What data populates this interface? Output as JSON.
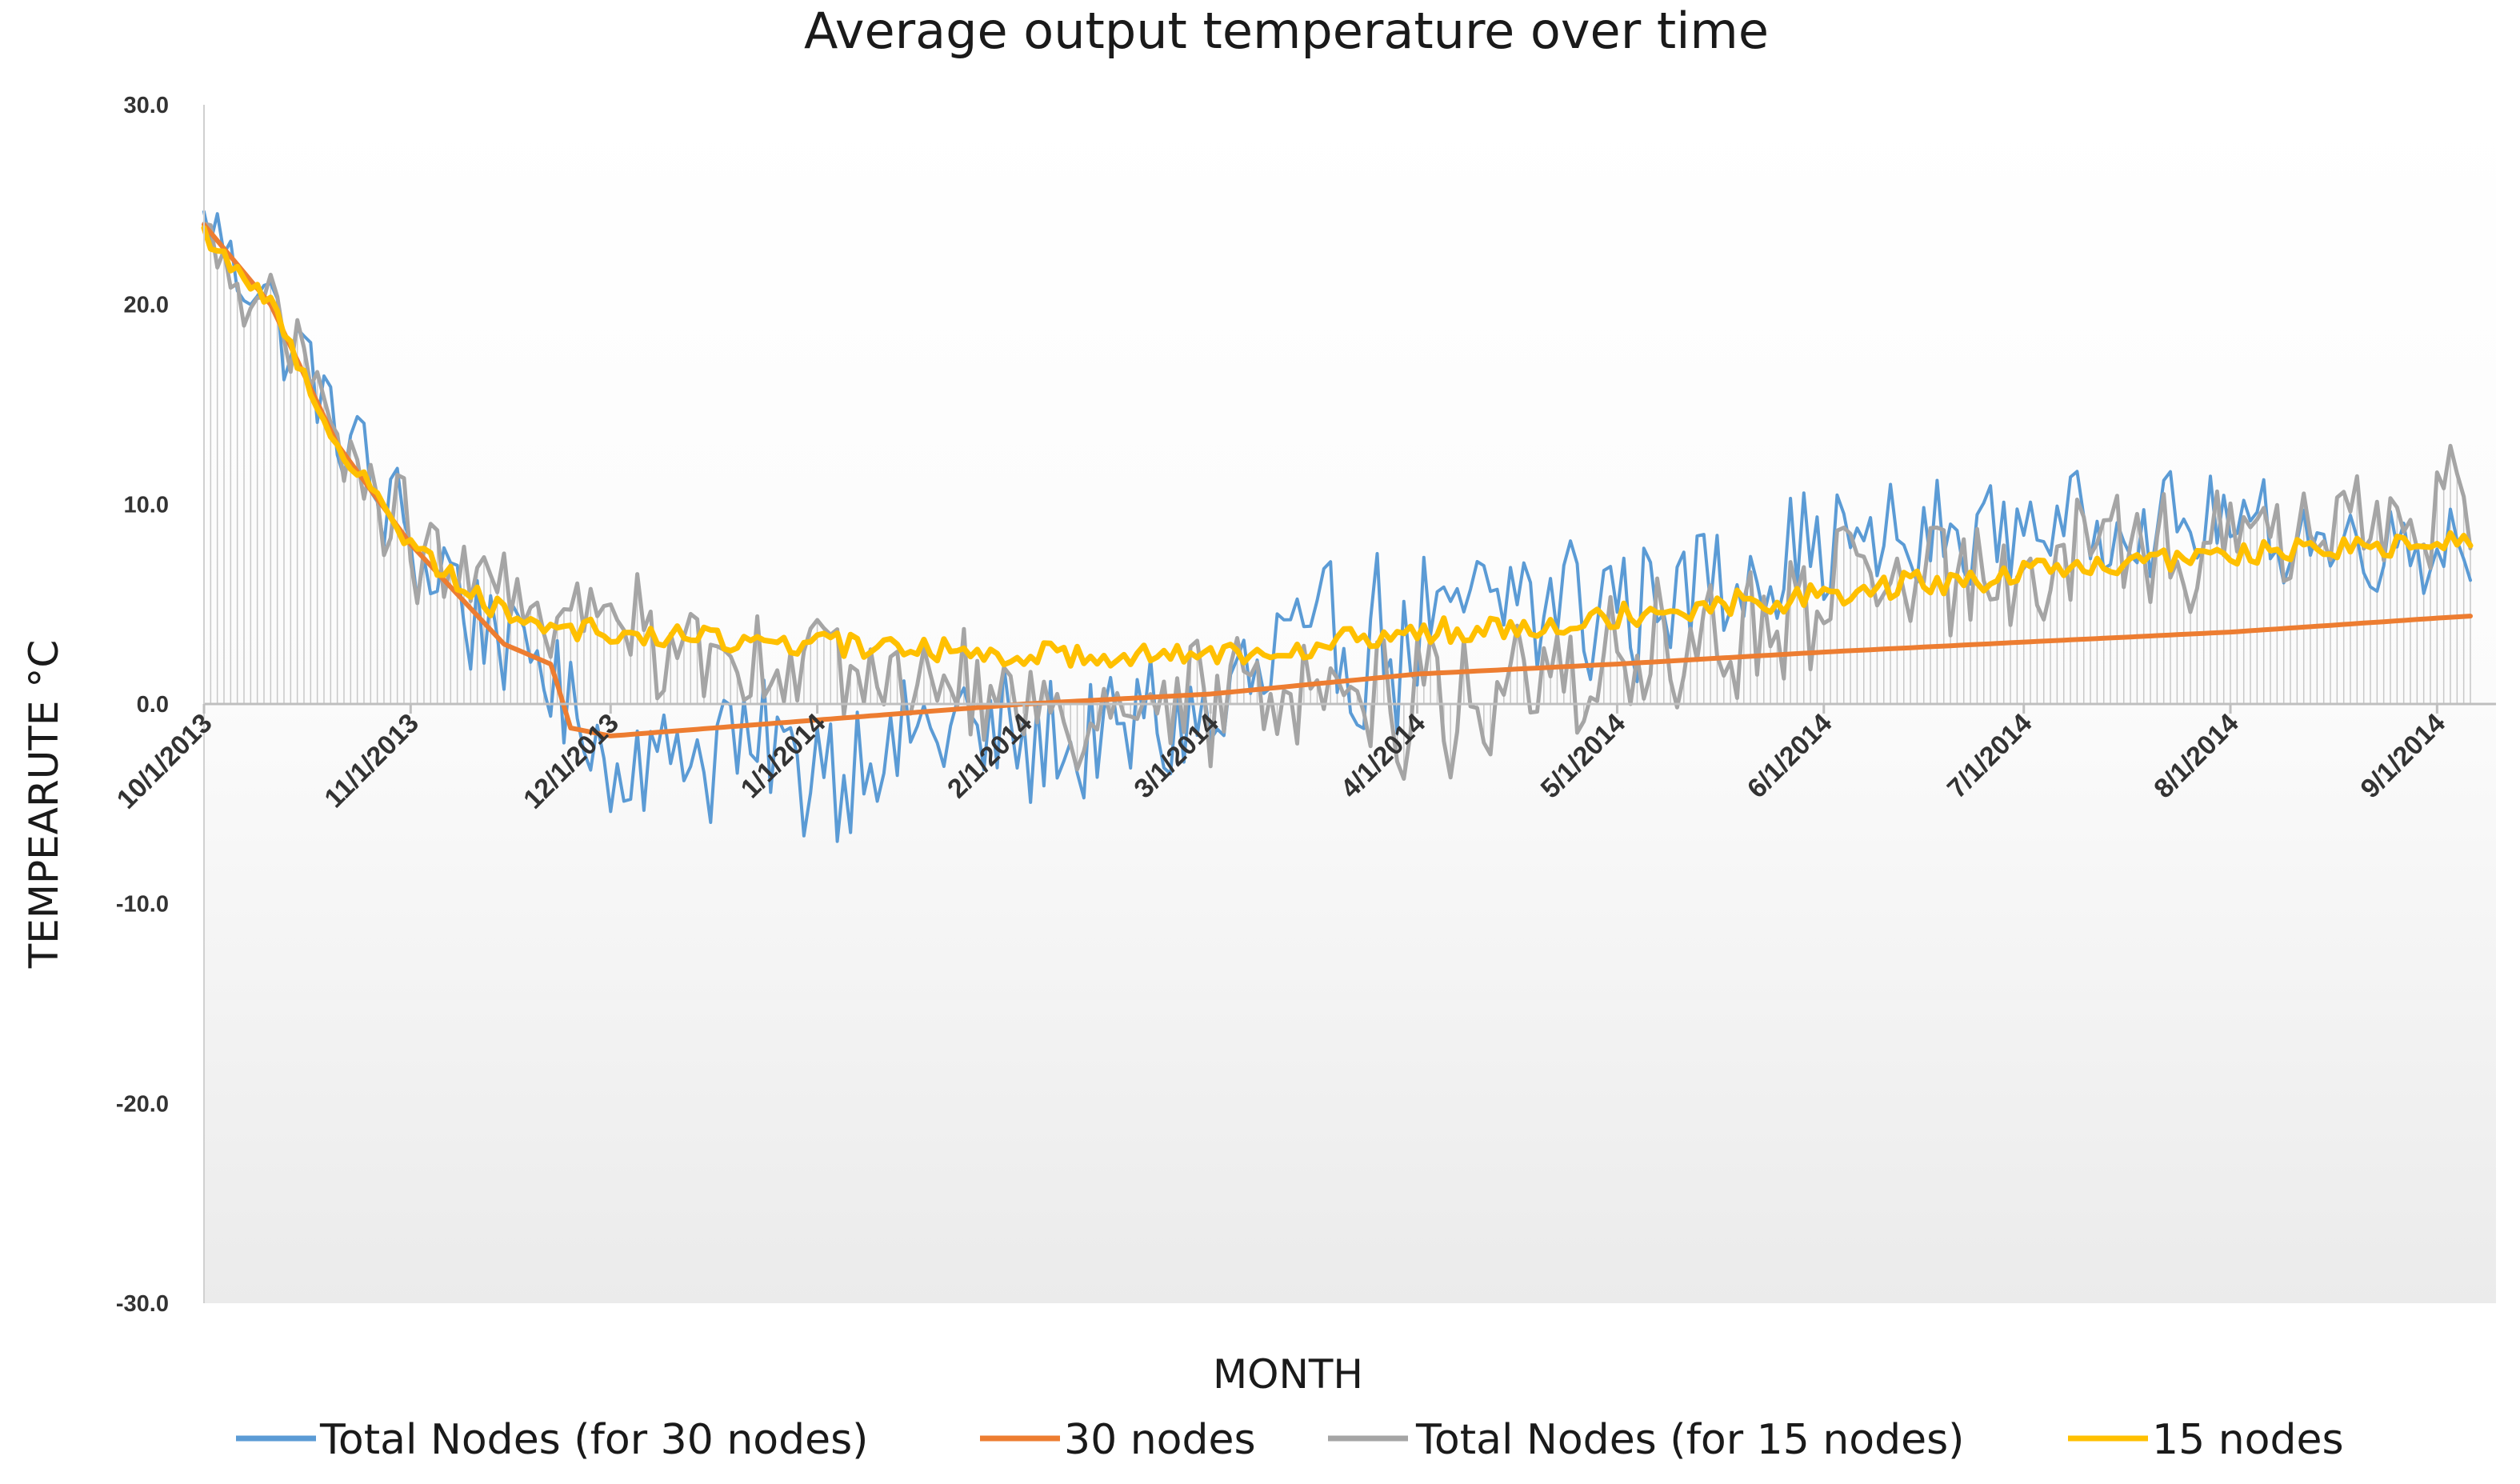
{
  "chart_data": {
    "type": "line",
    "title": "Average output temperature over time",
    "xlabel": "MONTH",
    "ylabel": "TEMPEARUTE °C",
    "ylim": [
      -30,
      30
    ],
    "y_ticks": [
      "30.0",
      "20.0",
      "10.0",
      "0.0",
      "-10.0",
      "-20.0",
      "-30.0"
    ],
    "y_tick_values": [
      30,
      20,
      10,
      0,
      -10,
      -20,
      -30
    ],
    "x_day_range": [
      0,
      340
    ],
    "x_ticks": [
      "10/1/2013",
      "11/1/2013",
      "12/1/2013",
      "1/1/2014",
      "2/1/2014",
      "3/1/2014",
      "4/1/2014",
      "5/1/2014",
      "6/1/2014",
      "7/1/2014",
      "8/1/2014",
      "9/1/2014"
    ],
    "x_tick_days": [
      0,
      31,
      61,
      92,
      123,
      151,
      182,
      212,
      243,
      273,
      304,
      335
    ],
    "grid": false,
    "legend_position": "bottom",
    "series": [
      {
        "name": "Total Nodes (for 30 nodes)",
        "color": "#5b9bd5",
        "style": "noisy",
        "days": [
          0,
          10,
          20,
          31,
          40,
          45,
          50,
          55,
          61,
          75,
          92,
          105,
          110,
          123,
          135,
          140,
          151,
          160,
          170,
          182,
          195,
          212,
          225,
          243,
          258,
          273,
          290,
          304,
          320,
          335,
          340
        ],
        "values": [
          24,
          20,
          14,
          8,
          5,
          3,
          2,
          0,
          -3,
          -2,
          -3,
          -2,
          -1,
          -2,
          -2,
          -1,
          -1,
          2,
          3,
          3,
          5,
          5,
          6,
          8,
          8,
          9,
          9,
          9,
          8,
          8,
          8
        ],
        "amplitude": [
          1.5,
          2,
          2.5,
          2.5,
          3,
          3,
          3,
          3,
          3,
          3.5,
          3.5,
          3,
          3,
          3,
          3,
          3,
          3,
          3.5,
          3.5,
          4,
          4,
          3.5,
          3,
          2.5,
          2.5,
          2,
          2,
          2,
          2,
          2,
          2
        ]
      },
      {
        "name": "30 nodes",
        "color": "#ed7d31",
        "style": "smooth",
        "days": [
          0,
          10,
          20,
          31,
          45,
          52,
          53,
          55,
          61,
          92,
          123,
          151,
          182,
          212,
          243,
          273,
          304,
          335,
          340
        ],
        "values": [
          24,
          20,
          13,
          8,
          3,
          2,
          1,
          -1.2,
          -1.6,
          -0.8,
          0,
          0.5,
          1.5,
          2,
          2.6,
          3.1,
          3.6,
          4.3,
          4.4
        ],
        "amplitude": [
          0,
          0,
          0,
          0,
          0,
          0,
          0,
          0,
          0,
          0,
          0,
          0,
          0,
          0,
          0,
          0,
          0,
          0,
          0
        ]
      },
      {
        "name": "Total Nodes (for 15 nodes)",
        "color": "#a5a5a5",
        "style": "noisy",
        "days": [
          0,
          10,
          20,
          31,
          45,
          61,
          92,
          123,
          151,
          165,
          182,
          200,
          212,
          230,
          243,
          273,
          304,
          320,
          335,
          340
        ],
        "values": [
          23,
          20,
          13,
          8,
          5,
          4,
          2,
          0,
          0,
          1,
          0,
          1,
          2,
          3,
          5,
          7,
          8,
          9,
          10,
          10
        ],
        "amplitude": [
          1.5,
          2,
          2,
          2.5,
          2.5,
          2.5,
          2.5,
          2.5,
          2.5,
          3,
          3,
          3,
          3,
          3,
          3,
          3,
          2.5,
          2.5,
          2.5,
          2.5
        ]
      },
      {
        "name": "15 nodes",
        "color": "#ffc000",
        "style": "jitter",
        "days": [
          0,
          10,
          20,
          31,
          45,
          61,
          92,
          123,
          151,
          182,
          212,
          243,
          273,
          304,
          335,
          340
        ],
        "values": [
          23.5,
          20,
          13,
          8,
          4.5,
          3.5,
          3,
          2.5,
          2.5,
          3.5,
          4.5,
          5.5,
          6.5,
          7.5,
          8,
          8.2
        ],
        "amplitude": [
          0.4,
          0.5,
          0.5,
          0.6,
          0.6,
          0.6,
          0.6,
          0.6,
          0.6,
          0.7,
          0.7,
          0.7,
          0.7,
          0.6,
          0.5,
          0.5
        ]
      }
    ]
  }
}
